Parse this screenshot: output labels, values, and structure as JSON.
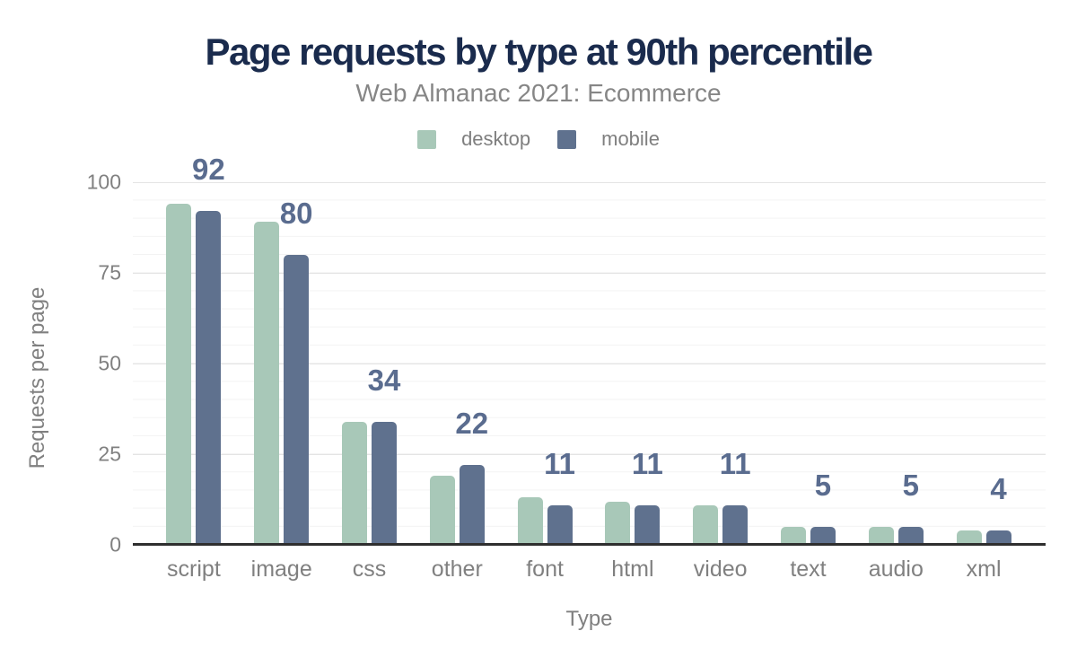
{
  "chart_data": {
    "type": "bar",
    "title": "Page requests by type at 90th percentile",
    "subtitle": "Web Almanac 2021: Ecommerce",
    "xlabel": "Type",
    "ylabel": "Requests per page",
    "ylim": [
      0,
      100
    ],
    "yticks": [
      0,
      25,
      50,
      75,
      100
    ],
    "grid": {
      "minor_step": 5,
      "major_step": 25
    },
    "legend_position": "top",
    "categories": [
      "script",
      "image",
      "css",
      "other",
      "font",
      "html",
      "video",
      "text",
      "audio",
      "xml"
    ],
    "series": [
      {
        "name": "desktop",
        "color": "#a8c8b8",
        "values": [
          94,
          89,
          34,
          19,
          13,
          12,
          11,
          5,
          5,
          4
        ]
      },
      {
        "name": "mobile",
        "color": "#5f718e",
        "values": [
          92,
          80,
          34,
          22,
          11,
          11,
          11,
          5,
          5,
          4
        ]
      }
    ],
    "annotations": {
      "series": "mobile",
      "values": [
        92,
        80,
        34,
        22,
        11,
        11,
        11,
        5,
        5,
        4
      ],
      "color": "#5a6c8f"
    }
  }
}
